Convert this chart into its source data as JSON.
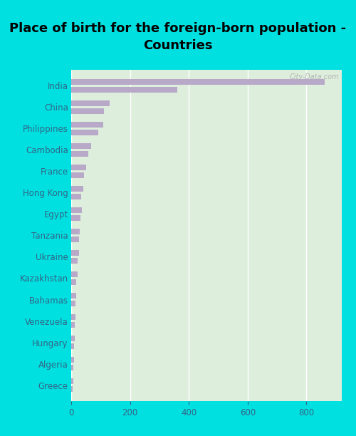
{
  "title": "Place of birth for the foreign-born population -\nCountries",
  "categories": [
    "India",
    "China",
    "Philippines",
    "Cambodia",
    "France",
    "Hong Kong",
    "Egypt",
    "Tanzania",
    "Ukraine",
    "Kazakhstan",
    "Bahamas",
    "Venezuela",
    "Hungary",
    "Algeria",
    "Greece"
  ],
  "bar1_values": [
    862,
    130,
    110,
    68,
    52,
    40,
    37,
    30,
    26,
    21,
    17,
    14,
    12,
    10,
    8
  ],
  "bar2_values": [
    360,
    112,
    92,
    58,
    43,
    35,
    32,
    26,
    22,
    17,
    14,
    11,
    9,
    7,
    5
  ],
  "bar_color": "#b8a9c9",
  "bg_color": "#ddeedd",
  "outer_bg": "#00e0e0",
  "xlim": [
    0,
    920
  ],
  "xticks": [
    0,
    200,
    400,
    600,
    800
  ],
  "watermark": "City-Data.com",
  "title_fontsize": 13,
  "tick_label_fontsize": 8.5,
  "axis_tick_fontsize": 8.5
}
